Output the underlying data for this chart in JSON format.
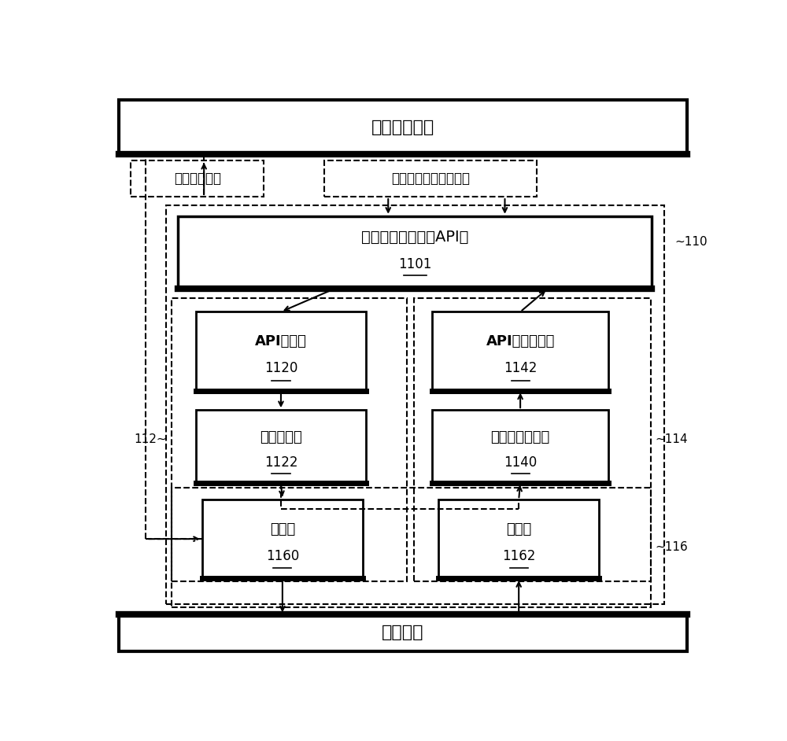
{
  "title": "车辆控制逻辑",
  "bottom_bar": "车辆网络",
  "label_existing": "现有控制逻辑",
  "label_external_ctrl": "外部交互工作控制逻辑",
  "label_api_group": "外部资源交互工作API组",
  "label_api_group_num": "1101",
  "label_api_analysis": "API分析部",
  "label_api_analysis_num": "1120",
  "label_msg_gen": "消息生成部",
  "label_msg_gen_num": "1122",
  "label_api_resp": "API响应生成部",
  "label_api_resp_num": "1142",
  "label_ext_info": "外部信息分析部",
  "label_ext_info_num": "1140",
  "label_send": "发送部",
  "label_send_num": "1160",
  "label_recv": "接收部",
  "label_recv_num": "1162",
  "label_110": "~110",
  "label_112": "112~",
  "label_114": "~114",
  "label_116": "~116",
  "bg_color": "#ffffff"
}
